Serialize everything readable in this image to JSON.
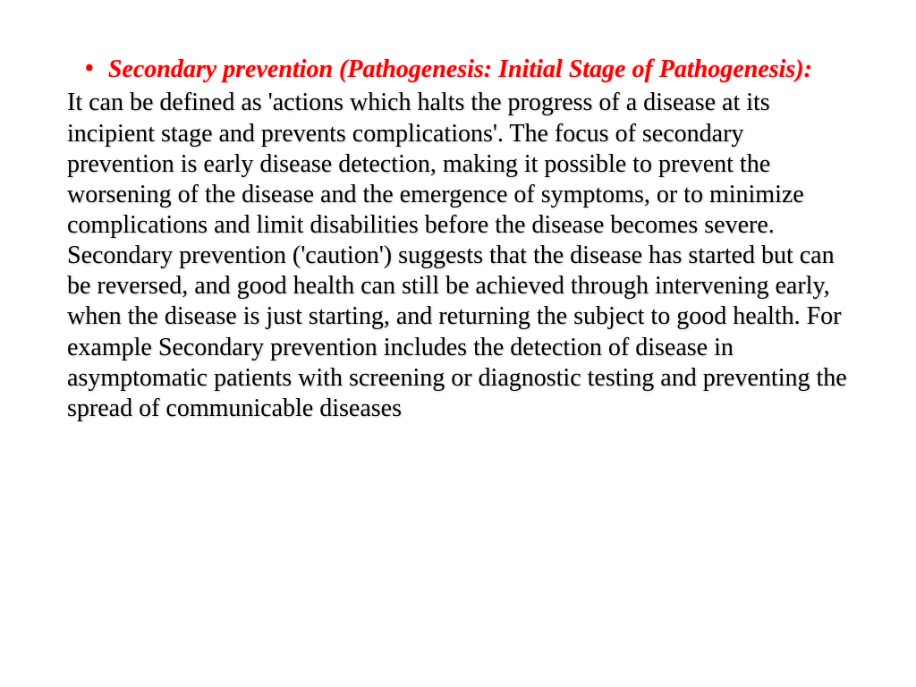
{
  "slide": {
    "bullet_marker": "•",
    "heading": "Secondary prevention (Pathogenesis: Initial Stage of Pathogenesis):",
    "body": "It can be defined as 'actions which halts the progress of a disease at its incipient stage and prevents complications'. The focus of secondary prevention is early disease detection, making it possible to prevent the worsening of the disease and the emergence of symptoms, or to minimize complications and limit disabilities before the disease becomes severe. Secondary prevention ('caution') suggests that the disease has started but can be reversed, and good health can still be achieved through intervening early, when the disease is just starting, and returning the subject to good health. For example Secondary prevention includes the detection of disease in asymptomatic patients with screening or diagnostic testing and preventing the spread of communicable diseases",
    "heading_color": "#ff0000",
    "body_color": "#000000",
    "background_color": "#ffffff",
    "font_family": "Times New Roman",
    "heading_fontsize": 28,
    "body_fontsize": 28,
    "heading_style": "italic bold",
    "text_shadow": true
  }
}
